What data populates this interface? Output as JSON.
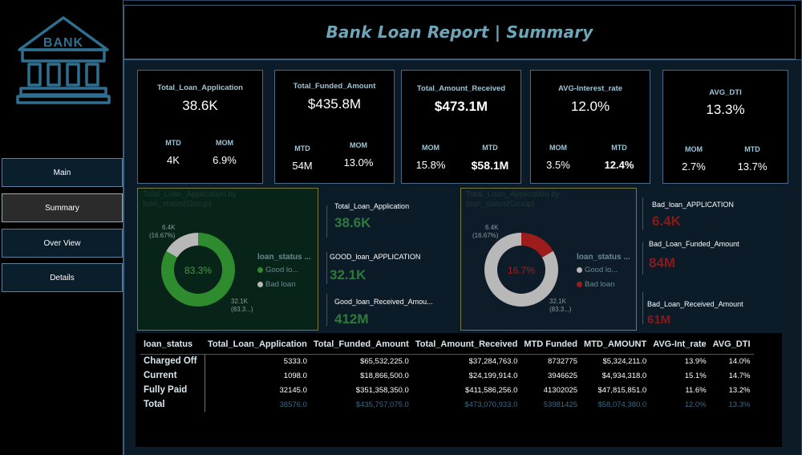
{
  "title": "Bank Loan Report | Summary",
  "logo": {
    "text": "BANK",
    "icon": "bank-building-icon",
    "color": "#2f6f8f"
  },
  "nav": [
    {
      "label": "Main"
    },
    {
      "label": "Summary"
    },
    {
      "label": "Over View"
    },
    {
      "label": "Details"
    }
  ],
  "kpis": [
    {
      "title": "Total_Loan_Application",
      "value": "38.6K",
      "s1_label": "MTD",
      "s1_value": "4K",
      "s2_label": "MOM",
      "s2_value": "6.9%"
    },
    {
      "title": "Total_Funded_Amount",
      "value": "$435.8M",
      "s1_label": "MTD",
      "s1_value": "54M",
      "s2_label": "MOM",
      "s2_value": "13.0%"
    },
    {
      "title": "Total_Amount_Received",
      "value": "$473.1M",
      "s1_label": "MOM",
      "s1_value": "15.8%",
      "s2_label": "MTD",
      "s2_value": "$58.1M"
    },
    {
      "title": "AVG-Interest_rate",
      "value": "12.0%",
      "s1_label": "MOM",
      "s1_value": "3.5%",
      "s2_label": "MTD",
      "s2_value": "12.4%"
    },
    {
      "title": "AVG_DTI",
      "value": "13.3%",
      "s1_label": "MOM",
      "s1_value": "2.7%",
      "s2_label": "MTD",
      "s2_value": "13.7%"
    }
  ],
  "good_panel": {
    "chart_title": "Total_Loan_Application by loan_status(Group)",
    "center": "83.3%",
    "small_label": "6.4K",
    "small_pct": "(16.67%)",
    "big_label": "32.1K",
    "big_pct": "(83.3...)",
    "legend_title": "loan_status ...",
    "legend": [
      "Good lo...",
      "Bad loan"
    ],
    "colors": {
      "good": "#2e8b2e",
      "bad": "#b8b8b8"
    },
    "chart_data": {
      "type": "pie",
      "categories": [
        "Good loan",
        "Bad loan"
      ],
      "values": [
        32.1,
        6.4
      ]
    }
  },
  "good_stats": [
    {
      "label": "Total_Loan_Application",
      "value": "38.6K"
    },
    {
      "label": "GOOD_loan_APPLICATION",
      "value": "32.1K"
    },
    {
      "label": "Good_loan_Received_Amou...",
      "value": "412M"
    }
  ],
  "bad_panel": {
    "chart_title": "Total_Loan_Application by loan_status(Group)",
    "center": "16.7%",
    "small_label": "6.4K",
    "small_pct": "(16.67%)",
    "big_label": "32.1K",
    "big_pct": "(83.3...)",
    "legend_title": "loan_status ...",
    "legend": [
      "Good lo...",
      "Bad loan"
    ],
    "colors": {
      "good": "#b8b8b8",
      "bad": "#9e1c1c"
    },
    "chart_data": {
      "type": "pie",
      "categories": [
        "Good loan",
        "Bad loan"
      ],
      "values": [
        32.1,
        6.4
      ]
    }
  },
  "bad_stats": [
    {
      "label": "Bad_loan_APPLICATION",
      "value": "6.4K"
    },
    {
      "label": "Bad_Loan_Funded_Amount",
      "value": "84M"
    },
    {
      "label": "Bad_Loan_Received_Amount",
      "value": "61M"
    }
  ],
  "table": {
    "headers": [
      "loan_status",
      "Total_Loan_Application",
      "Total_Funded_Amount",
      "Total_Amount_Received",
      "MTD Funded",
      "MTD_AMOUNT",
      "AVG-Int_rate",
      "AVG_DTI"
    ],
    "rows": [
      [
        "Charged Off",
        "5333.0",
        "$65,532,225.0",
        "$37,284,763.0",
        "8732775",
        "$5,324,211.0",
        "13.9%",
        "14.0%"
      ],
      [
        "Current",
        "1098.0",
        "$18,866,500.0",
        "$24,199,914.0",
        "3946625",
        "$4,934,318.0",
        "15.1%",
        "14.7%"
      ],
      [
        "Fully Paid",
        "32145.0",
        "$351,358,350.0",
        "$411,586,256.0",
        "41302025",
        "$47,815,851.0",
        "11.6%",
        "13.2%"
      ]
    ],
    "total": [
      "Total",
      "38576.0",
      "$435,757,075.0",
      "$473,070,933.0",
      "53981425",
      "$58,074,380.0",
      "12.0%",
      "13.3%"
    ]
  }
}
